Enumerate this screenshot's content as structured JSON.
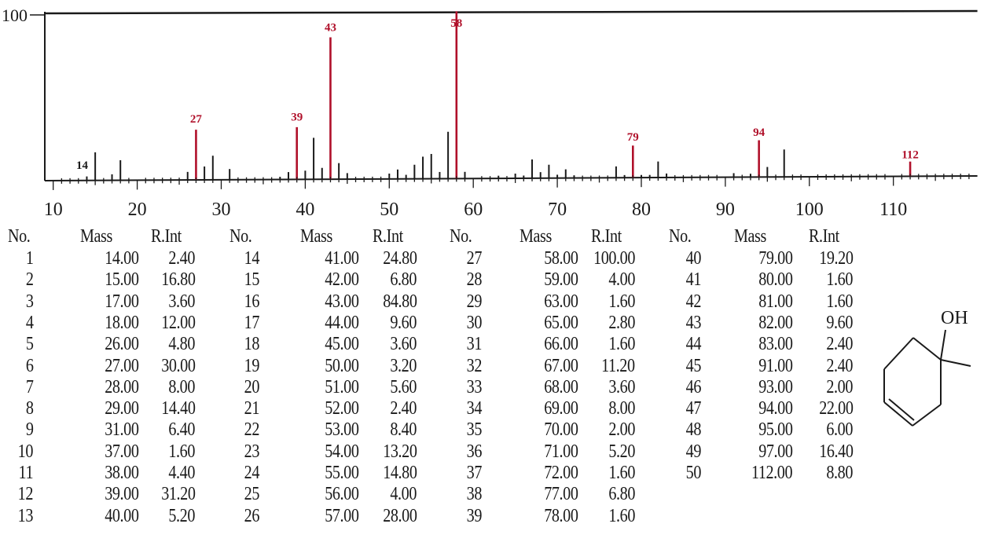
{
  "chart_data": {
    "type": "bar",
    "xlim": [
      9,
      120
    ],
    "ylim": [
      0,
      100
    ],
    "y_tick_labels": [
      "100"
    ],
    "x_ticks": [
      10,
      20,
      30,
      40,
      50,
      60,
      70,
      80,
      90,
      100,
      110
    ],
    "peak_labels": [
      14,
      27,
      39,
      43,
      58,
      79,
      94,
      112
    ],
    "bar_color": "#b0102a",
    "table_headers": [
      "No.",
      "Mass",
      "R.Int"
    ],
    "peaks": [
      {
        "no": "1",
        "mass": "14.00",
        "int": "2.40"
      },
      {
        "no": "2",
        "mass": "15.00",
        "int": "16.80"
      },
      {
        "no": "3",
        "mass": "17.00",
        "int": "3.60"
      },
      {
        "no": "4",
        "mass": "18.00",
        "int": "12.00"
      },
      {
        "no": "5",
        "mass": "26.00",
        "int": "4.80"
      },
      {
        "no": "6",
        "mass": "27.00",
        "int": "30.00"
      },
      {
        "no": "7",
        "mass": "28.00",
        "int": "8.00"
      },
      {
        "no": "8",
        "mass": "29.00",
        "int": "14.40"
      },
      {
        "no": "9",
        "mass": "31.00",
        "int": "6.40"
      },
      {
        "no": "10",
        "mass": "37.00",
        "int": "1.60"
      },
      {
        "no": "11",
        "mass": "38.00",
        "int": "4.40"
      },
      {
        "no": "12",
        "mass": "39.00",
        "int": "31.20"
      },
      {
        "no": "13",
        "mass": "40.00",
        "int": "5.20"
      },
      {
        "no": "14",
        "mass": "41.00",
        "int": "24.80"
      },
      {
        "no": "15",
        "mass": "42.00",
        "int": "6.80"
      },
      {
        "no": "16",
        "mass": "43.00",
        "int": "84.80"
      },
      {
        "no": "17",
        "mass": "44.00",
        "int": "9.60"
      },
      {
        "no": "18",
        "mass": "45.00",
        "int": "3.60"
      },
      {
        "no": "19",
        "mass": "50.00",
        "int": "3.20"
      },
      {
        "no": "20",
        "mass": "51.00",
        "int": "5.60"
      },
      {
        "no": "21",
        "mass": "52.00",
        "int": "2.40"
      },
      {
        "no": "22",
        "mass": "53.00",
        "int": "8.40"
      },
      {
        "no": "23",
        "mass": "54.00",
        "int": "13.20"
      },
      {
        "no": "24",
        "mass": "55.00",
        "int": "14.80"
      },
      {
        "no": "25",
        "mass": "56.00",
        "int": "4.00"
      },
      {
        "no": "26",
        "mass": "57.00",
        "int": "28.00"
      },
      {
        "no": "27",
        "mass": "58.00",
        "int": "100.00"
      },
      {
        "no": "28",
        "mass": "59.00",
        "int": "4.00"
      },
      {
        "no": "29",
        "mass": "63.00",
        "int": "1.60"
      },
      {
        "no": "30",
        "mass": "65.00",
        "int": "2.80"
      },
      {
        "no": "31",
        "mass": "66.00",
        "int": "1.60"
      },
      {
        "no": "32",
        "mass": "67.00",
        "int": "11.20"
      },
      {
        "no": "33",
        "mass": "68.00",
        "int": "3.60"
      },
      {
        "no": "34",
        "mass": "69.00",
        "int": "8.00"
      },
      {
        "no": "35",
        "mass": "70.00",
        "int": "2.00"
      },
      {
        "no": "36",
        "mass": "71.00",
        "int": "5.20"
      },
      {
        "no": "37",
        "mass": "72.00",
        "int": "1.60"
      },
      {
        "no": "38",
        "mass": "77.00",
        "int": "6.80"
      },
      {
        "no": "39",
        "mass": "78.00",
        "int": "1.60"
      },
      {
        "no": "40",
        "mass": "79.00",
        "int": "19.20"
      },
      {
        "no": "41",
        "mass": "80.00",
        "int": "1.60"
      },
      {
        "no": "42",
        "mass": "81.00",
        "int": "1.60"
      },
      {
        "no": "43",
        "mass": "82.00",
        "int": "9.60"
      },
      {
        "no": "44",
        "mass": "83.00",
        "int": "2.40"
      },
      {
        "no": "45",
        "mass": "91.00",
        "int": "2.40"
      },
      {
        "no": "46",
        "mass": "93.00",
        "int": "2.00"
      },
      {
        "no": "47",
        "mass": "94.00",
        "int": "22.00"
      },
      {
        "no": "48",
        "mass": "95.00",
        "int": "6.00"
      },
      {
        "no": "49",
        "mass": "97.00",
        "int": "16.40"
      },
      {
        "no": "50",
        "mass": "112.00",
        "int": "8.80"
      }
    ]
  },
  "structure": {
    "oh_label": "OH"
  }
}
